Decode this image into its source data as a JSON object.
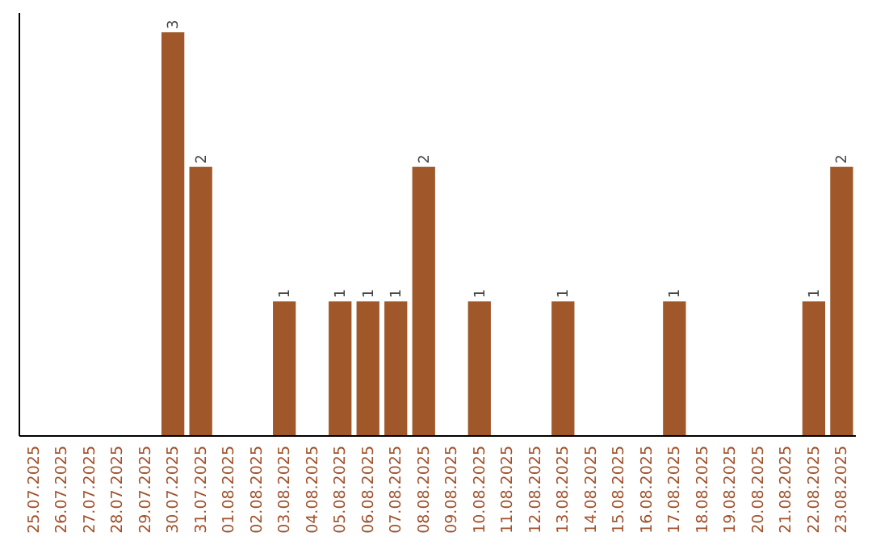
{
  "chart_data": {
    "type": "bar",
    "categories": [
      "25.07.2025",
      "26.07.2025",
      "27.07.2025",
      "28.07.2025",
      "29.07.2025",
      "30.07.2025",
      "31.07.2025",
      "01.08.2025",
      "02.08.2025",
      "03.08.2025",
      "04.08.2025",
      "05.08.2025",
      "06.08.2025",
      "07.08.2025",
      "08.08.2025",
      "09.08.2025",
      "10.08.2025",
      "11.08.2025",
      "12.08.2025",
      "13.08.2025",
      "14.08.2025",
      "15.08.2025",
      "16.08.2025",
      "17.08.2025",
      "18.08.2025",
      "19.08.2025",
      "20.08.2025",
      "21.08.2025",
      "22.08.2025",
      "23.08.2025"
    ],
    "values": [
      0,
      0,
      0,
      0,
      0,
      3,
      2,
      0,
      0,
      1,
      0,
      1,
      1,
      1,
      2,
      0,
      1,
      0,
      0,
      1,
      0,
      0,
      0,
      1,
      0,
      0,
      0,
      0,
      1,
      2
    ],
    "value_labels": [
      null,
      null,
      null,
      null,
      null,
      "3",
      "2",
      null,
      null,
      "1",
      null,
      "1",
      "1",
      "1",
      "2",
      null,
      "1",
      null,
      null,
      "1",
      null,
      null,
      null,
      "1",
      null,
      null,
      null,
      null,
      "1",
      "2"
    ],
    "color": "#a0582a"
  }
}
